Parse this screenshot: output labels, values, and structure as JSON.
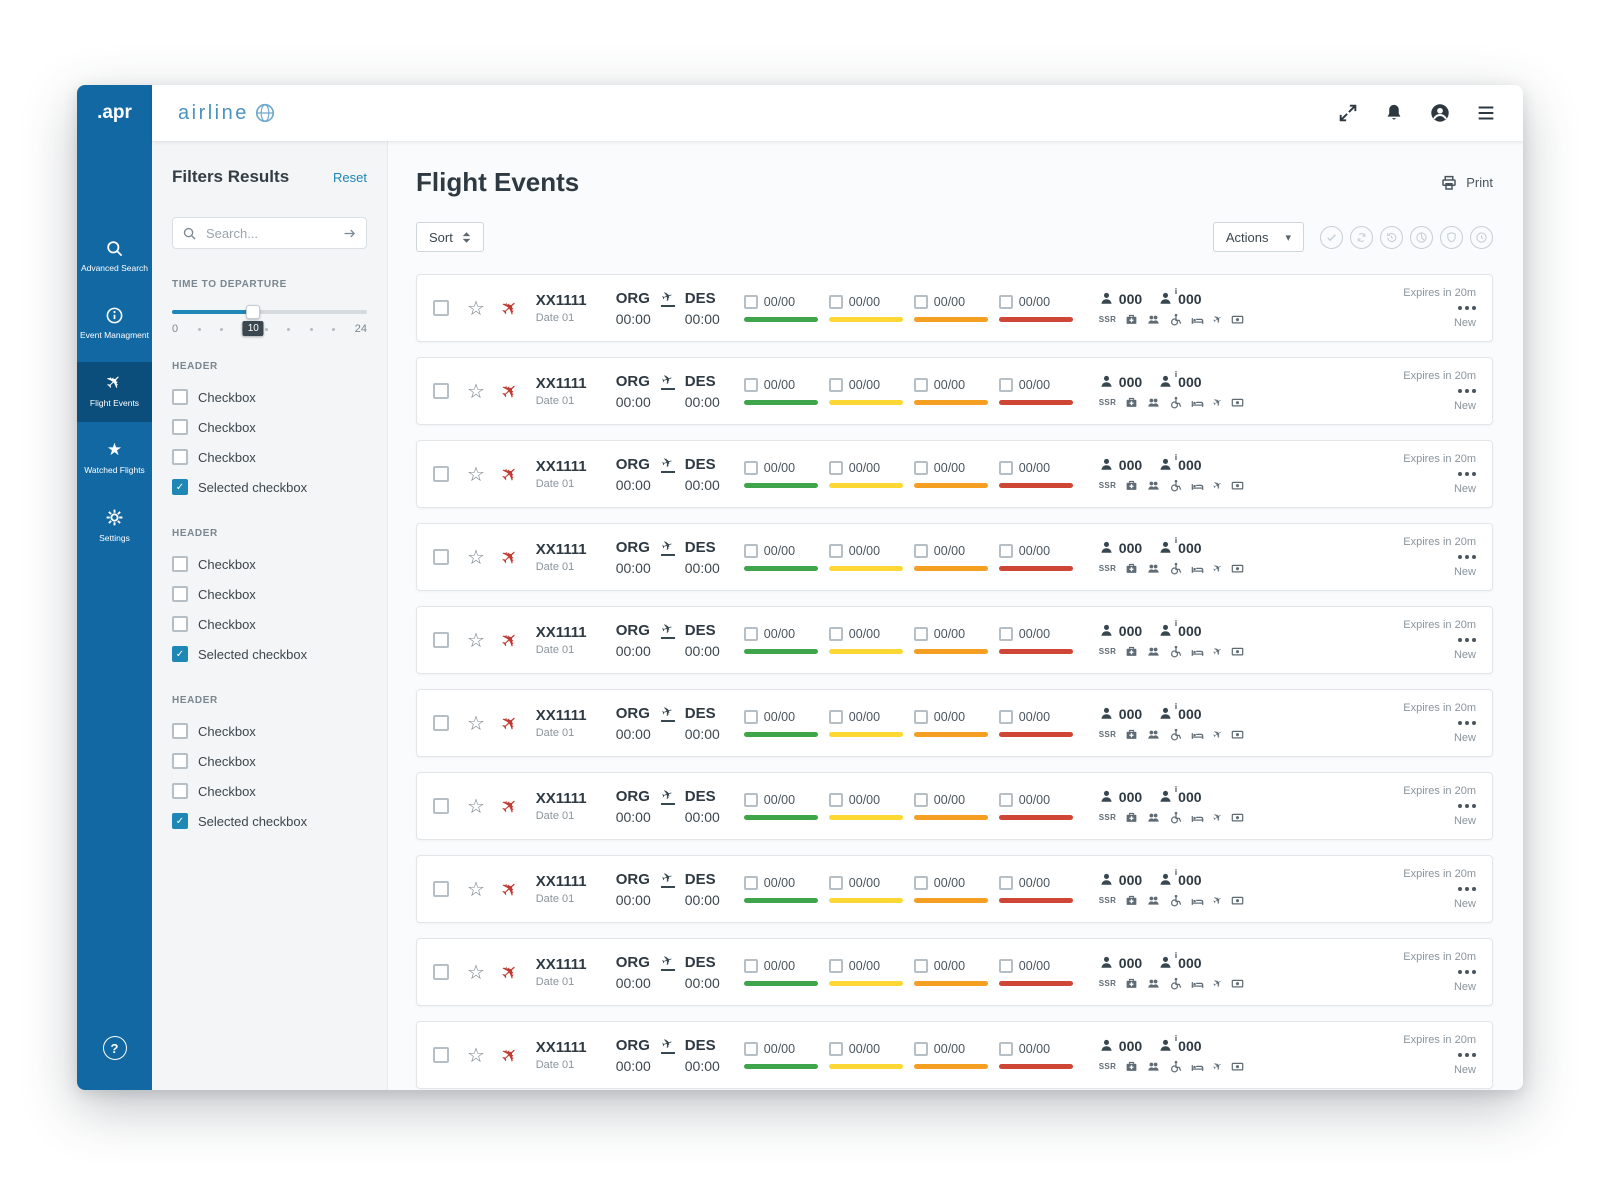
{
  "window": {
    "brand": ".apr"
  },
  "header": {
    "logo": "airline",
    "icons": [
      "globe",
      "fullscreen",
      "notifications",
      "account",
      "menu"
    ]
  },
  "sidebar": {
    "help_label": "?",
    "items": [
      {
        "label": "Advanced Search",
        "icon": "search",
        "active": false
      },
      {
        "label": "Event Managment",
        "icon": "info",
        "active": false
      },
      {
        "label": "Flight Events",
        "icon": "plane",
        "active": true
      },
      {
        "label": "Watched Flights",
        "icon": "star",
        "active": false
      },
      {
        "label": "Settings",
        "icon": "gear",
        "active": false
      }
    ]
  },
  "filters": {
    "title": "Filters Results",
    "reset": "Reset",
    "search": {
      "placeholder": "Search..."
    },
    "slider": {
      "label": "TIME TO DEPARTURE",
      "min": 0,
      "max": 24,
      "value": 10
    },
    "groups": [
      {
        "header": "HEADER",
        "options": [
          {
            "label": "Checkbox",
            "checked": false
          },
          {
            "label": "Checkbox",
            "checked": false
          },
          {
            "label": "Checkbox",
            "checked": false
          },
          {
            "label": "Selected checkbox",
            "checked": true
          }
        ]
      },
      {
        "header": "HEADER",
        "options": [
          {
            "label": "Checkbox",
            "checked": false
          },
          {
            "label": "Checkbox",
            "checked": false
          },
          {
            "label": "Checkbox",
            "checked": false
          },
          {
            "label": "Selected checkbox",
            "checked": true
          }
        ]
      },
      {
        "header": "HEADER",
        "options": [
          {
            "label": "Checkbox",
            "checked": false
          },
          {
            "label": "Checkbox",
            "checked": false
          },
          {
            "label": "Checkbox",
            "checked": false
          },
          {
            "label": "Selected checkbox",
            "checked": true
          }
        ]
      }
    ]
  },
  "main": {
    "title": "Flight Events",
    "print": "Print",
    "sort": "Sort",
    "actions": "Actions",
    "toolbar_icons": [
      "approve",
      "sync",
      "history",
      "pie",
      "shield",
      "schedule"
    ]
  },
  "rows": [
    {
      "flight_no": "XX1111",
      "date": "Date 01",
      "origin": {
        "code": "ORG",
        "time": "00:00"
      },
      "destination": {
        "code": "DES",
        "time": "00:00"
      },
      "metrics": [
        {
          "value": "00/00",
          "color": "#3fa54a"
        },
        {
          "value": "00/00",
          "color": "#fdd835"
        },
        {
          "value": "00/00",
          "color": "#f59f22"
        },
        {
          "value": "00/00",
          "color": "#cf4637"
        }
      ],
      "pax": {
        "total": "000",
        "info": "000"
      },
      "ssr": "SSR",
      "expires": "Expires in 20m",
      "status": "New"
    },
    {
      "flight_no": "XX1111",
      "date": "Date 01",
      "origin": {
        "code": "ORG",
        "time": "00:00"
      },
      "destination": {
        "code": "DES",
        "time": "00:00"
      },
      "metrics": [
        {
          "value": "00/00",
          "color": "#3fa54a"
        },
        {
          "value": "00/00",
          "color": "#fdd835"
        },
        {
          "value": "00/00",
          "color": "#f59f22"
        },
        {
          "value": "00/00",
          "color": "#cf4637"
        }
      ],
      "pax": {
        "total": "000",
        "info": "000"
      },
      "ssr": "SSR",
      "expires": "Expires in 20m",
      "status": "New"
    },
    {
      "flight_no": "XX1111",
      "date": "Date 01",
      "origin": {
        "code": "ORG",
        "time": "00:00"
      },
      "destination": {
        "code": "DES",
        "time": "00:00"
      },
      "metrics": [
        {
          "value": "00/00",
          "color": "#3fa54a"
        },
        {
          "value": "00/00",
          "color": "#fdd835"
        },
        {
          "value": "00/00",
          "color": "#f59f22"
        },
        {
          "value": "00/00",
          "color": "#cf4637"
        }
      ],
      "pax": {
        "total": "000",
        "info": "000"
      },
      "ssr": "SSR",
      "expires": "Expires in 20m",
      "status": "New"
    },
    {
      "flight_no": "XX1111",
      "date": "Date 01",
      "origin": {
        "code": "ORG",
        "time": "00:00"
      },
      "destination": {
        "code": "DES",
        "time": "00:00"
      },
      "metrics": [
        {
          "value": "00/00",
          "color": "#3fa54a"
        },
        {
          "value": "00/00",
          "color": "#fdd835"
        },
        {
          "value": "00/00",
          "color": "#f59f22"
        },
        {
          "value": "00/00",
          "color": "#cf4637"
        }
      ],
      "pax": {
        "total": "000",
        "info": "000"
      },
      "ssr": "SSR",
      "expires": "Expires in 20m",
      "status": "New"
    },
    {
      "flight_no": "XX1111",
      "date": "Date 01",
      "origin": {
        "code": "ORG",
        "time": "00:00"
      },
      "destination": {
        "code": "DES",
        "time": "00:00"
      },
      "metrics": [
        {
          "value": "00/00",
          "color": "#3fa54a"
        },
        {
          "value": "00/00",
          "color": "#fdd835"
        },
        {
          "value": "00/00",
          "color": "#f59f22"
        },
        {
          "value": "00/00",
          "color": "#cf4637"
        }
      ],
      "pax": {
        "total": "000",
        "info": "000"
      },
      "ssr": "SSR",
      "expires": "Expires in 20m",
      "status": "New"
    },
    {
      "flight_no": "XX1111",
      "date": "Date 01",
      "origin": {
        "code": "ORG",
        "time": "00:00"
      },
      "destination": {
        "code": "DES",
        "time": "00:00"
      },
      "metrics": [
        {
          "value": "00/00",
          "color": "#3fa54a"
        },
        {
          "value": "00/00",
          "color": "#fdd835"
        },
        {
          "value": "00/00",
          "color": "#f59f22"
        },
        {
          "value": "00/00",
          "color": "#cf4637"
        }
      ],
      "pax": {
        "total": "000",
        "info": "000"
      },
      "ssr": "SSR",
      "expires": "Expires in 20m",
      "status": "New"
    },
    {
      "flight_no": "XX1111",
      "date": "Date 01",
      "origin": {
        "code": "ORG",
        "time": "00:00"
      },
      "destination": {
        "code": "DES",
        "time": "00:00"
      },
      "metrics": [
        {
          "value": "00/00",
          "color": "#3fa54a"
        },
        {
          "value": "00/00",
          "color": "#fdd835"
        },
        {
          "value": "00/00",
          "color": "#f59f22"
        },
        {
          "value": "00/00",
          "color": "#cf4637"
        }
      ],
      "pax": {
        "total": "000",
        "info": "000"
      },
      "ssr": "SSR",
      "expires": "Expires in 20m",
      "status": "New"
    },
    {
      "flight_no": "XX1111",
      "date": "Date 01",
      "origin": {
        "code": "ORG",
        "time": "00:00"
      },
      "destination": {
        "code": "DES",
        "time": "00:00"
      },
      "metrics": [
        {
          "value": "00/00",
          "color": "#3fa54a"
        },
        {
          "value": "00/00",
          "color": "#fdd835"
        },
        {
          "value": "00/00",
          "color": "#f59f22"
        },
        {
          "value": "00/00",
          "color": "#cf4637"
        }
      ],
      "pax": {
        "total": "000",
        "info": "000"
      },
      "ssr": "SSR",
      "expires": "Expires in 20m",
      "status": "New"
    },
    {
      "flight_no": "XX1111",
      "date": "Date 01",
      "origin": {
        "code": "ORG",
        "time": "00:00"
      },
      "destination": {
        "code": "DES",
        "time": "00:00"
      },
      "metrics": [
        {
          "value": "00/00",
          "color": "#3fa54a"
        },
        {
          "value": "00/00",
          "color": "#fdd835"
        },
        {
          "value": "00/00",
          "color": "#f59f22"
        },
        {
          "value": "00/00",
          "color": "#cf4637"
        }
      ],
      "pax": {
        "total": "000",
        "info": "000"
      },
      "ssr": "SSR",
      "expires": "Expires in 20m",
      "status": "New"
    },
    {
      "flight_no": "XX1111",
      "date": "Date 01",
      "origin": {
        "code": "ORG",
        "time": "00:00"
      },
      "destination": {
        "code": "DES",
        "time": "00:00"
      },
      "metrics": [
        {
          "value": "00/00",
          "color": "#3fa54a"
        },
        {
          "value": "00/00",
          "color": "#fdd835"
        },
        {
          "value": "00/00",
          "color": "#f59f22"
        },
        {
          "value": "00/00",
          "color": "#cf4637"
        }
      ],
      "pax": {
        "total": "000",
        "info": "000"
      },
      "ssr": "SSR",
      "expires": "Expires in 20m",
      "status": "New"
    }
  ]
}
